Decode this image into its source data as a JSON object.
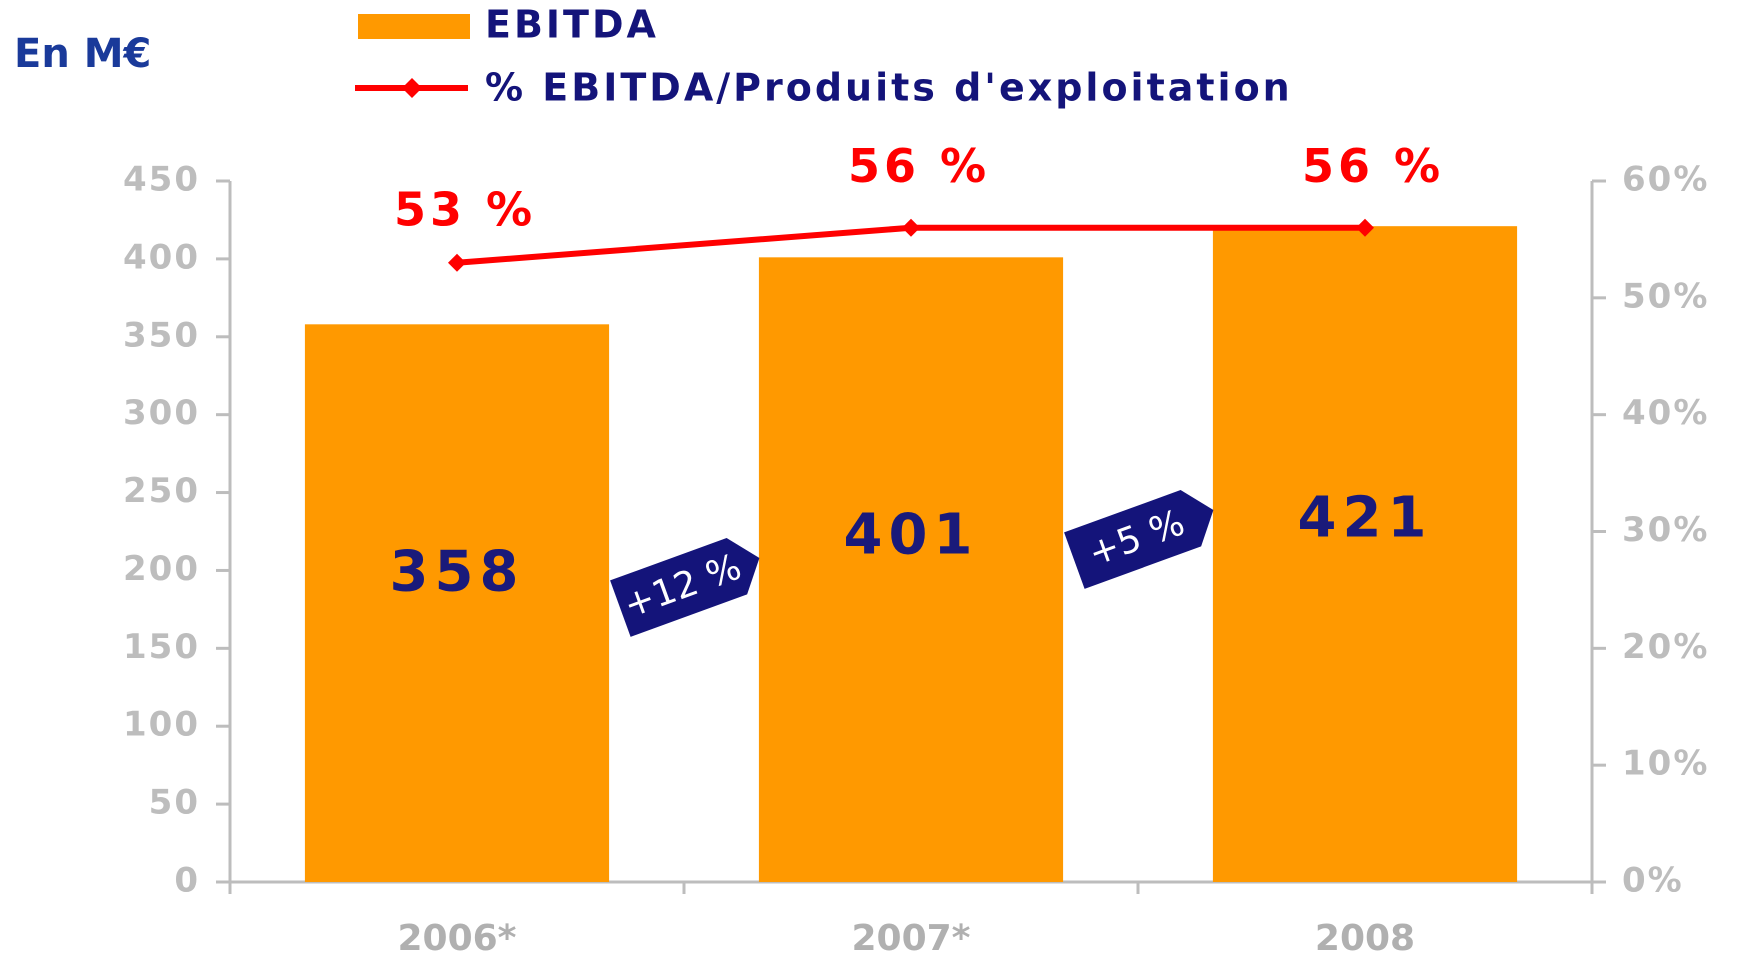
{
  "chart_data": {
    "type": "bar",
    "unit_label": "En M€",
    "categories": [
      "2006*",
      "2007*",
      "2008"
    ],
    "series": [
      {
        "name": "EBITDA",
        "color": "#FF9900",
        "type": "bar",
        "values": [
          358,
          401,
          421
        ]
      },
      {
        "name": "% EBITDA/Produits d'exploitation",
        "color": "#FF0000",
        "type": "line",
        "axis": "y2",
        "values": [
          53,
          56,
          56
        ],
        "value_labels": [
          "53 %",
          "56 %",
          "56 %"
        ]
      }
    ],
    "ylim": [
      0,
      450
    ],
    "yticks": [
      0,
      50,
      100,
      150,
      200,
      250,
      300,
      350,
      400,
      450
    ],
    "y2lim": [
      0,
      60
    ],
    "y2ticks": [
      {
        "value": 0,
        "label": "0%"
      },
      {
        "value": 10,
        "label": "10%"
      },
      {
        "value": 20,
        "label": "20%"
      },
      {
        "value": 30,
        "label": "30%"
      },
      {
        "value": 40,
        "label": "40%"
      },
      {
        "value": 50,
        "label": "50%"
      },
      {
        "value": 60,
        "label": "60%"
      }
    ],
    "annotations": [
      "+12 %",
      "+5 %"
    ],
    "legend": "top"
  }
}
